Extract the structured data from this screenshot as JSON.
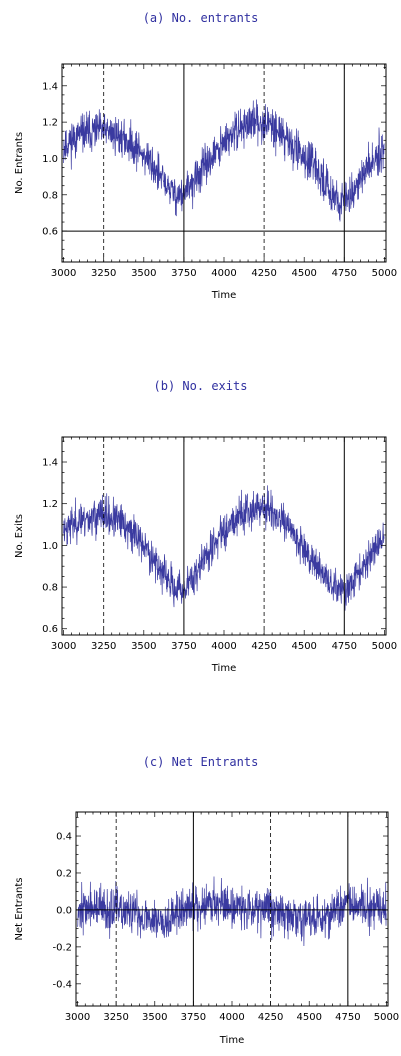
{
  "chart_data": [
    {
      "type": "line",
      "title": "(a) No. entrants",
      "xlabel": "Time",
      "ylabel": "No. Entrants",
      "xlim": [
        2990,
        5010
      ],
      "ylim": [
        0.43,
        1.52
      ],
      "x_ticks": [
        3000,
        3250,
        3500,
        3750,
        4000,
        4250,
        4500,
        4750,
        5000
      ],
      "y_ticks": [
        0.6,
        0.8,
        1.0,
        1.2,
        1.4
      ],
      "y_tick_labels": [
        "0.6",
        "0.8",
        "1.0",
        "1.2",
        "1.4"
      ],
      "series_color": "#3a3aa0",
      "reference_lines": {
        "solid_x": [
          3750,
          4750
        ],
        "dashed_x": [
          3250,
          4250
        ],
        "solid_y": [
          0.6
        ]
      },
      "series": [
        {
          "x": [
            3000,
            3050,
            3100,
            3150,
            3200,
            3250,
            3300,
            3350,
            3400,
            3450,
            3500,
            3550,
            3600,
            3650,
            3700,
            3750,
            3800,
            3850,
            3900,
            3950,
            4000,
            4050,
            4100,
            4150,
            4200,
            4250,
            4300,
            4350,
            4400,
            4450,
            4500,
            4550,
            4600,
            4650,
            4700,
            4750,
            4800,
            4850,
            4900,
            4950,
            5000
          ],
          "values": [
            1.07,
            1.1,
            1.13,
            1.14,
            1.15,
            1.15,
            1.14,
            1.12,
            1.09,
            1.06,
            1.02,
            0.97,
            0.9,
            0.84,
            0.8,
            0.8,
            0.86,
            0.92,
            0.98,
            1.03,
            1.08,
            1.13,
            1.17,
            1.19,
            1.2,
            1.2,
            1.18,
            1.14,
            1.1,
            1.05,
            1.01,
            0.96,
            0.9,
            0.84,
            0.78,
            0.76,
            0.82,
            0.88,
            0.95,
            1.02,
            1.07
          ]
        }
      ]
    },
    {
      "type": "line",
      "title": "(b) No. exits",
      "xlabel": "Time",
      "ylabel": "No. Exits",
      "xlim": [
        2990,
        5010
      ],
      "ylim": [
        0.57,
        1.52
      ],
      "x_ticks": [
        3000,
        3250,
        3500,
        3750,
        4000,
        4250,
        4500,
        4750,
        5000
      ],
      "y_ticks": [
        0.6,
        0.8,
        1.0,
        1.2,
        1.4
      ],
      "y_tick_labels": [
        "0.6",
        "0.8",
        "1.0",
        "1.2",
        "1.4"
      ],
      "series_color": "#3a3aa0",
      "reference_lines": {
        "solid_x": [
          3750,
          4750
        ],
        "dashed_x": [
          3250,
          4250
        ],
        "solid_y": []
      },
      "series": [
        {
          "x": [
            3000,
            3050,
            3100,
            3150,
            3200,
            3250,
            3300,
            3350,
            3400,
            3450,
            3500,
            3550,
            3600,
            3650,
            3700,
            3750,
            3800,
            3850,
            3900,
            3950,
            4000,
            4050,
            4100,
            4150,
            4200,
            4250,
            4300,
            4350,
            4400,
            4450,
            4500,
            4550,
            4600,
            4650,
            4700,
            4750,
            4800,
            4850,
            4900,
            4950,
            5000
          ],
          "values": [
            1.08,
            1.1,
            1.12,
            1.13,
            1.14,
            1.14,
            1.13,
            1.11,
            1.08,
            1.05,
            1.0,
            0.95,
            0.89,
            0.83,
            0.79,
            0.79,
            0.84,
            0.9,
            0.96,
            1.02,
            1.07,
            1.12,
            1.15,
            1.17,
            1.18,
            1.18,
            1.16,
            1.12,
            1.08,
            1.04,
            0.99,
            0.94,
            0.88,
            0.83,
            0.79,
            0.78,
            0.82,
            0.88,
            0.94,
            1.0,
            1.04
          ]
        }
      ]
    },
    {
      "type": "line",
      "title": "(c) Net Entrants",
      "xlabel": "Time",
      "ylabel": "Net Entrants",
      "xlim": [
        2990,
        5010
      ],
      "ylim": [
        -0.52,
        0.53
      ],
      "x_ticks": [
        3000,
        3250,
        3500,
        3750,
        4000,
        4250,
        4500,
        4750,
        5000
      ],
      "y_ticks": [
        -0.4,
        -0.2,
        0.0,
        0.2,
        0.4
      ],
      "y_tick_labels": [
        "-0.4",
        "-0.2",
        "0.0",
        "0.2",
        "0.4"
      ],
      "series_color": "#3a3aa0",
      "reference_lines": {
        "solid_x": [
          3750,
          4750
        ],
        "dashed_x": [
          3250,
          4250
        ],
        "solid_y": [
          0.0
        ]
      },
      "series": [
        {
          "x": [
            3000,
            3050,
            3100,
            3150,
            3200,
            3250,
            3300,
            3350,
            3400,
            3450,
            3500,
            3550,
            3600,
            3650,
            3700,
            3750,
            3800,
            3850,
            3900,
            3950,
            4000,
            4050,
            4100,
            4150,
            4200,
            4250,
            4300,
            4350,
            4400,
            4450,
            4500,
            4550,
            4600,
            4650,
            4700,
            4750,
            4800,
            4850,
            4900,
            4950,
            5000
          ],
          "values": [
            0.0,
            0.01,
            0.01,
            0.0,
            0.0,
            0.0,
            -0.01,
            -0.02,
            -0.03,
            -0.04,
            -0.05,
            -0.05,
            -0.04,
            -0.02,
            0.0,
            0.02,
            0.03,
            0.04,
            0.04,
            0.03,
            0.02,
            0.01,
            0.01,
            0.02,
            0.02,
            0.01,
            -0.01,
            -0.03,
            -0.04,
            -0.05,
            -0.05,
            -0.04,
            -0.03,
            -0.01,
            0.01,
            0.02,
            0.03,
            0.02,
            0.01,
            0.0,
            0.0
          ]
        }
      ]
    }
  ]
}
